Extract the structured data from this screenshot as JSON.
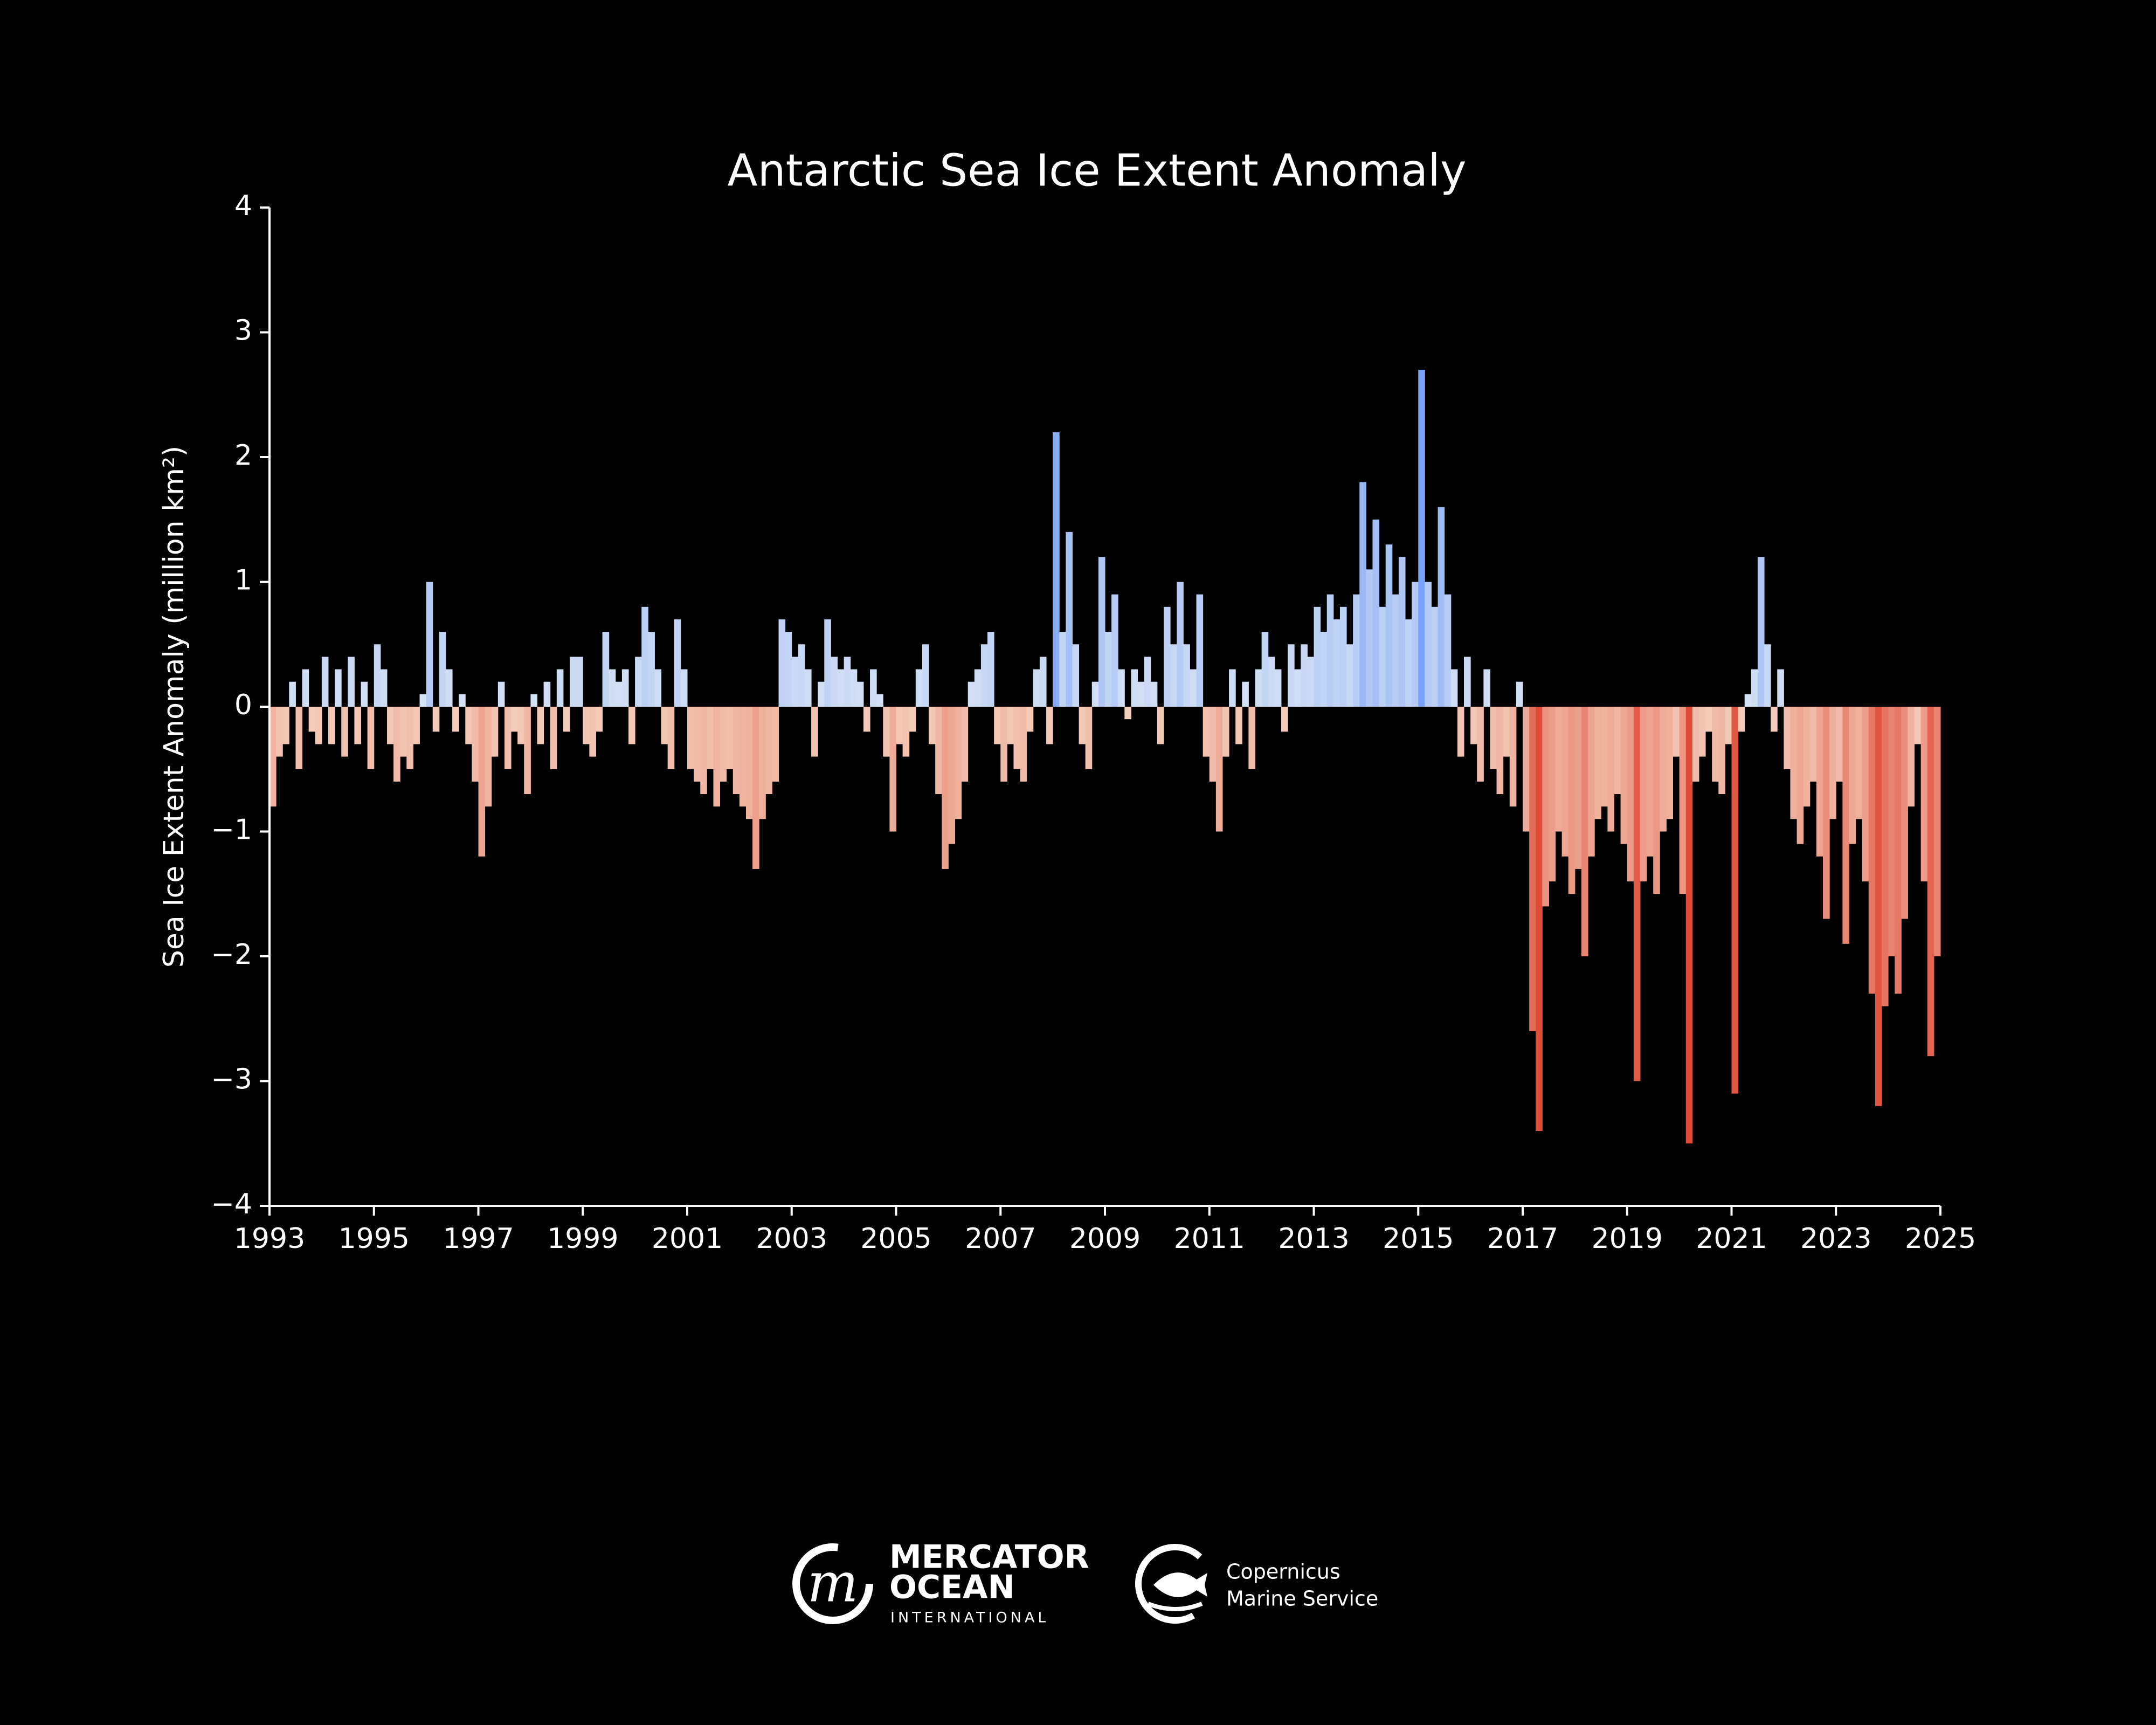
{
  "chart_data": {
    "type": "bar",
    "title": "Antarctic Sea Ice Extent Anomaly",
    "y_label": "Sea Ice Extent Anomaly (million km²)",
    "xlim": [
      1993,
      2025
    ],
    "ylim": [
      -4,
      4
    ],
    "xticks": [
      1993,
      1995,
      1997,
      1999,
      2001,
      2003,
      2005,
      2007,
      2009,
      2011,
      2013,
      2015,
      2017,
      2019,
      2021,
      2023,
      2025
    ],
    "yticks": [
      {
        "value": -4,
        "label": "−4"
      },
      {
        "value": -3,
        "label": "−3"
      },
      {
        "value": -2,
        "label": "−2"
      },
      {
        "value": -1,
        "label": "−1"
      },
      0,
      1,
      2,
      3,
      4
    ],
    "positive_colors": [
      "#d9e3f4",
      "#5b8ff7"
    ],
    "negative_colors": [
      "#f4d3c0",
      "#df4a36"
    ],
    "x": [
      1993,
      1993.125,
      1993.25,
      1993.375,
      1993.5,
      1993.625,
      1993.75,
      1993.875,
      1994,
      1994.125,
      1994.25,
      1994.375,
      1994.5,
      1994.625,
      1994.75,
      1994.875,
      1995,
      1995.125,
      1995.25,
      1995.375,
      1995.5,
      1995.625,
      1995.75,
      1995.875,
      1996,
      1996.125,
      1996.25,
      1996.375,
      1996.5,
      1996.625,
      1996.75,
      1996.875,
      1997,
      1997.125,
      1997.25,
      1997.375,
      1997.5,
      1997.625,
      1997.75,
      1997.875,
      1998,
      1998.125,
      1998.25,
      1998.375,
      1998.5,
      1998.625,
      1998.75,
      1998.875,
      1999,
      1999.125,
      1999.25,
      1999.375,
      1999.5,
      1999.625,
      1999.75,
      1999.875,
      2000,
      2000.125,
      2000.25,
      2000.375,
      2000.5,
      2000.625,
      2000.75,
      2000.875,
      2001,
      2001.125,
      2001.25,
      2001.375,
      2001.5,
      2001.625,
      2001.75,
      2001.875,
      2002,
      2002.125,
      2002.25,
      2002.375,
      2002.5,
      2002.625,
      2002.75,
      2002.875,
      2003,
      2003.125,
      2003.25,
      2003.375,
      2003.5,
      2003.625,
      2003.75,
      2003.875,
      2004,
      2004.125,
      2004.25,
      2004.375,
      2004.5,
      2004.625,
      2004.75,
      2004.875,
      2005,
      2005.125,
      2005.25,
      2005.375,
      2005.5,
      2005.625,
      2005.75,
      2005.875,
      2006,
      2006.125,
      2006.25,
      2006.375,
      2006.5,
      2006.625,
      2006.75,
      2006.875,
      2007,
      2007.125,
      2007.25,
      2007.375,
      2007.5,
      2007.625,
      2007.75,
      2007.875,
      2008,
      2008.125,
      2008.25,
      2008.375,
      2008.5,
      2008.625,
      2008.75,
      2008.875,
      2009,
      2009.125,
      2009.25,
      2009.375,
      2009.5,
      2009.625,
      2009.75,
      2009.875,
      2010,
      2010.125,
      2010.25,
      2010.375,
      2010.5,
      2010.625,
      2010.75,
      2010.875,
      2011,
      2011.125,
      2011.25,
      2011.375,
      2011.5,
      2011.625,
      2011.75,
      2011.875,
      2012,
      2012.125,
      2012.25,
      2012.375,
      2012.5,
      2012.625,
      2012.75,
      2012.875,
      2013,
      2013.125,
      2013.25,
      2013.375,
      2013.5,
      2013.625,
      2013.75,
      2013.875,
      2014,
      2014.125,
      2014.25,
      2014.375,
      2014.5,
      2014.625,
      2014.75,
      2014.875,
      2015,
      2015.125,
      2015.25,
      2015.375,
      2015.5,
      2015.625,
      2015.75,
      2015.875,
      2016,
      2016.125,
      2016.25,
      2016.375,
      2016.5,
      2016.625,
      2016.75,
      2016.875,
      2017,
      2017.125,
      2017.25,
      2017.375,
      2017.5,
      2017.625,
      2017.75,
      2017.875,
      2018,
      2018.125,
      2018.25,
      2018.375,
      2018.5,
      2018.625,
      2018.75,
      2018.875,
      2019,
      2019.125,
      2019.25,
      2019.375,
      2019.5,
      2019.625,
      2019.75,
      2019.875,
      2020,
      2020.125,
      2020.25,
      2020.375,
      2020.5,
      2020.625,
      2020.75,
      2020.875,
      2021,
      2021.125,
      2021.25,
      2021.375,
      2021.5,
      2021.625,
      2021.75,
      2021.875,
      2022,
      2022.125,
      2022.25,
      2022.375,
      2022.5,
      2022.625,
      2022.75,
      2022.875,
      2023,
      2023.125,
      2023.25,
      2023.375,
      2023.5,
      2023.625,
      2023.75,
      2023.875,
      2024,
      2024.125,
      2024.25,
      2024.375,
      2024.5,
      2024.625,
      2024.75,
      2024.875
    ],
    "values": [
      -0.8,
      -0.4,
      -0.3,
      0.2,
      -0.5,
      0.3,
      -0.2,
      -0.3,
      0.4,
      -0.3,
      0.3,
      -0.4,
      0.4,
      -0.3,
      0.2,
      -0.5,
      0.5,
      0.3,
      -0.3,
      -0.6,
      -0.4,
      -0.5,
      -0.3,
      0.1,
      1.0,
      -0.2,
      0.6,
      0.3,
      -0.2,
      0.1,
      -0.3,
      -0.6,
      -1.2,
      -0.8,
      -0.4,
      0.2,
      -0.5,
      -0.2,
      -0.3,
      -0.7,
      0.1,
      -0.3,
      0.2,
      -0.5,
      0.3,
      -0.2,
      0.4,
      0.4,
      -0.3,
      -0.4,
      -0.2,
      0.6,
      0.3,
      0.2,
      0.3,
      -0.3,
      0.4,
      0.8,
      0.6,
      0.3,
      -0.3,
      -0.5,
      0.7,
      0.3,
      -0.5,
      -0.6,
      -0.7,
      -0.5,
      -0.8,
      -0.6,
      -0.5,
      -0.7,
      -0.8,
      -0.9,
      -1.3,
      -0.9,
      -0.7,
      -0.6,
      0.7,
      0.6,
      0.4,
      0.5,
      0.3,
      -0.4,
      0.2,
      0.7,
      0.4,
      0.3,
      0.4,
      0.3,
      0.2,
      -0.2,
      0.3,
      0.1,
      -0.4,
      -1.0,
      -0.3,
      -0.4,
      -0.2,
      0.3,
      0.5,
      -0.3,
      -0.7,
      -1.3,
      -1.1,
      -0.9,
      -0.6,
      0.2,
      0.3,
      0.5,
      0.6,
      -0.3,
      -0.6,
      -0.3,
      -0.5,
      -0.6,
      -0.2,
      0.3,
      0.4,
      -0.3,
      2.2,
      0.6,
      1.4,
      0.5,
      -0.3,
      -0.5,
      0.2,
      1.2,
      0.6,
      0.9,
      0.3,
      -0.1,
      0.3,
      0.2,
      0.4,
      0.2,
      -0.3,
      0.8,
      0.5,
      1.0,
      0.5,
      0.3,
      0.9,
      -0.4,
      -0.6,
      -1.0,
      -0.4,
      0.3,
      -0.3,
      0.2,
      -0.5,
      0.3,
      0.6,
      0.4,
      0.3,
      -0.2,
      0.5,
      0.3,
      0.5,
      0.4,
      0.8,
      0.6,
      0.9,
      0.7,
      0.8,
      0.5,
      0.9,
      1.8,
      1.1,
      1.5,
      0.8,
      1.3,
      0.9,
      1.2,
      0.7,
      1.0,
      2.7,
      1.0,
      0.8,
      1.6,
      0.9,
      0.3,
      -0.4,
      0.4,
      -0.3,
      -0.6,
      0.3,
      -0.5,
      -0.7,
      -0.4,
      -0.8,
      0.2,
      -1.0,
      -2.6,
      -3.4,
      -1.6,
      -1.4,
      -1.0,
      -1.2,
      -1.5,
      -1.3,
      -2.0,
      -1.2,
      -0.9,
      -0.8,
      -1.0,
      -0.7,
      -1.1,
      -1.4,
      -3.0,
      -1.4,
      -1.2,
      -1.5,
      -1.0,
      -0.9,
      -0.4,
      -1.5,
      -3.5,
      -0.6,
      -0.4,
      -0.2,
      -0.6,
      -0.7,
      -0.3,
      -3.1,
      -0.2,
      0.1,
      0.3,
      1.2,
      0.5,
      -0.2,
      0.3,
      -0.5,
      -0.9,
      -1.1,
      -0.8,
      -0.6,
      -1.2,
      -1.7,
      -0.9,
      -0.6,
      -1.9,
      -1.1,
      -0.9,
      -1.4,
      -2.3,
      -3.2,
      -2.4,
      -2.0,
      -2.3,
      -1.7,
      -0.8,
      -0.3,
      -1.4,
      -2.8,
      -2.0
    ]
  },
  "footer": {
    "logo1_line1": "MERCATOR",
    "logo1_line2": "OCEAN",
    "logo1_line3": "INTERNATIONAL",
    "logo2_line1": "Copernicus",
    "logo2_line2": "Marine Service"
  }
}
